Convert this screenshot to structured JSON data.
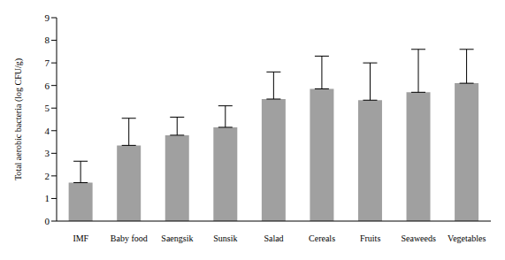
{
  "chart_data": {
    "type": "bar",
    "y_label": "Total aerobic bacteria (log CFU/g)",
    "categories": [
      "IMF",
      "Baby food",
      "Saengsik",
      "Sunsik",
      "Salad",
      "Cereals",
      "Fruits",
      "Seaweeds",
      "Vegetables"
    ],
    "values": [
      1.7,
      3.35,
      3.8,
      4.15,
      5.4,
      5.85,
      5.35,
      5.7,
      6.1
    ],
    "errors": [
      0.95,
      1.2,
      0.8,
      0.95,
      1.2,
      1.45,
      1.65,
      1.9,
      1.5
    ],
    "color": "#a0a0a0",
    "ylim": [
      0,
      9
    ],
    "yticks": [
      0,
      1,
      2,
      3,
      4,
      5,
      6,
      7,
      8,
      9
    ],
    "grid": false
  }
}
